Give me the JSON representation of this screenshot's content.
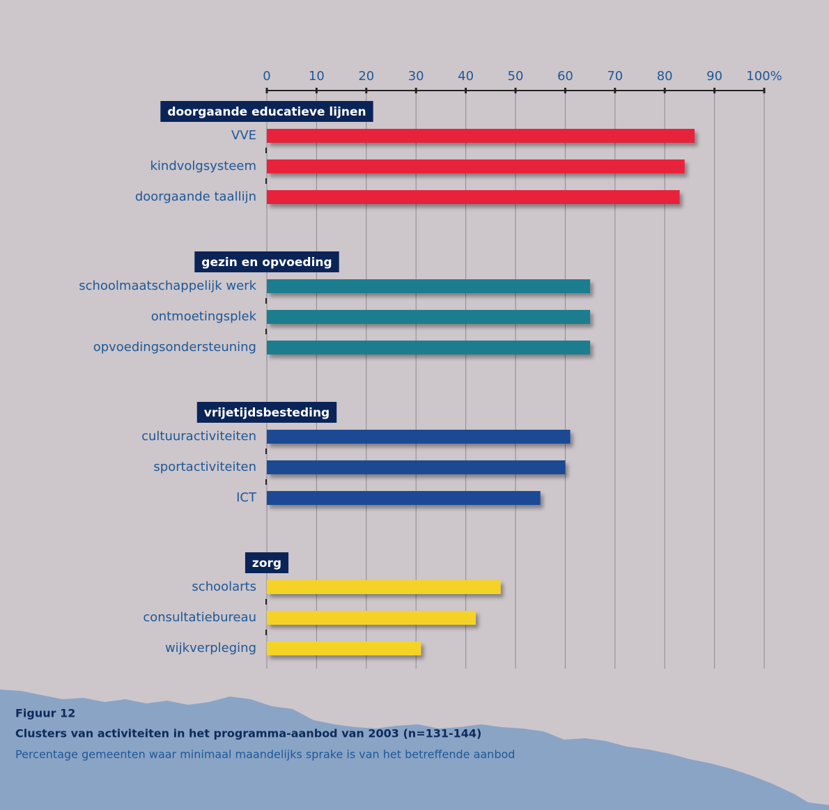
{
  "chart_data": {
    "type": "grouped-hbar",
    "figure_label": "Figuur 12",
    "title": "Clusters van activiteiten in het programma-aanbod van 2003 (n=131-144)",
    "subtitle": "Percentage gemeenten waar minimaal maandelijks sprake is van het betreffende aanbod",
    "xlim": [
      0,
      100
    ],
    "xticks": [
      0,
      10,
      20,
      30,
      40,
      50,
      60,
      70,
      80,
      90,
      {
        "value": 100,
        "label": "100%"
      }
    ],
    "grid": true,
    "groups": [
      {
        "name": "doorgaande educatieve lijnen",
        "color": "#e8213a",
        "categories": [
          "VVE",
          "kindvolgsysteem",
          "doorgaande taallijn"
        ],
        "values": [
          86,
          84,
          83
        ]
      },
      {
        "name": "gezin en opvoeding",
        "color": "#1e7d8e",
        "categories": [
          "schoolmaatschappelijk werk",
          "ontmoetingsplek",
          "opvoedingsondersteuning"
        ],
        "values": [
          65,
          65,
          65
        ]
      },
      {
        "name": "vrijetijdsbesteding",
        "color": "#1c4a94",
        "categories": [
          "cultuuractiviteiten",
          "sportactiviteiten",
          "ICT"
        ],
        "values": [
          61,
          60,
          55
        ]
      },
      {
        "name": "zorg",
        "color": "#f5d328",
        "categories": [
          "schoolarts",
          "consultatiebureau",
          "wijkverpleging"
        ],
        "values": [
          47,
          42,
          31
        ]
      }
    ]
  }
}
